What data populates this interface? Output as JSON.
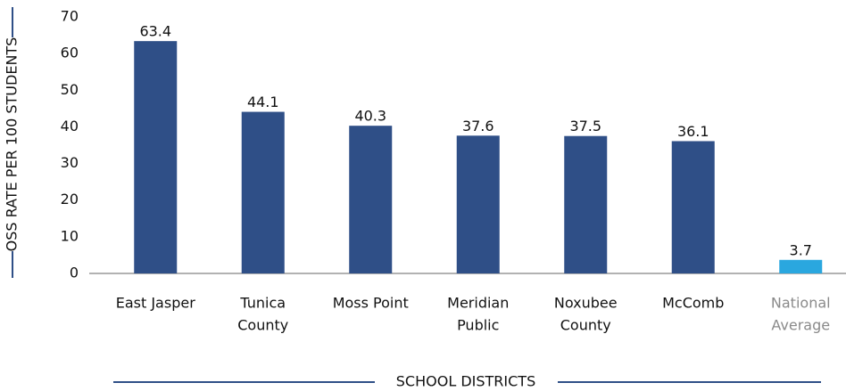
{
  "chart_data": {
    "type": "bar",
    "y_label": "OSS RATE PER 100 STUDENTS",
    "x_label": "SCHOOL DISTRICTS",
    "categories": [
      [
        "East Jasper"
      ],
      [
        "Tunica",
        "County"
      ],
      [
        "Moss Point"
      ],
      [
        "Meridian",
        "Public"
      ],
      [
        "Noxubee",
        "County"
      ],
      [
        "McComb"
      ],
      [
        "National",
        "Average"
      ]
    ],
    "values": [
      63.4,
      44.1,
      40.3,
      37.6,
      37.5,
      36.1,
      3.7
    ],
    "colors": [
      "#2f4f87",
      "#2f4f87",
      "#2f4f87",
      "#2f4f87",
      "#2f4f87",
      "#2f4f87",
      "#2aa7df"
    ],
    "category_label_colors": [
      "#111111",
      "#111111",
      "#111111",
      "#111111",
      "#111111",
      "#111111",
      "#8a8a8a"
    ],
    "ylim": [
      0,
      70
    ],
    "yticks": [
      0,
      10,
      20,
      30,
      40,
      50,
      60,
      70
    ],
    "grid": false
  }
}
